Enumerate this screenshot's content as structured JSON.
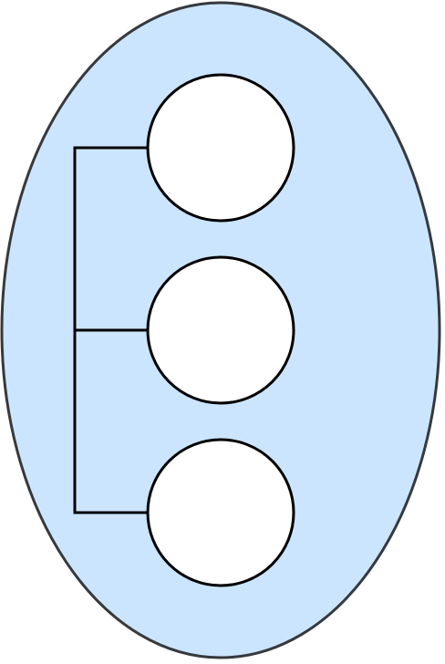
{
  "diagram": {
    "colors": {
      "container_fill": "#cce5ff",
      "container_stroke": "#36393d",
      "node_fill": "#ffffff",
      "node_stroke": "#000000",
      "connector_stroke": "#000000"
    },
    "container": {
      "label": ""
    },
    "nodes": [
      {
        "label": ""
      },
      {
        "label": ""
      },
      {
        "label": ""
      }
    ],
    "connectors": [
      "trunk",
      "branch-1",
      "branch-2",
      "branch-3"
    ]
  }
}
